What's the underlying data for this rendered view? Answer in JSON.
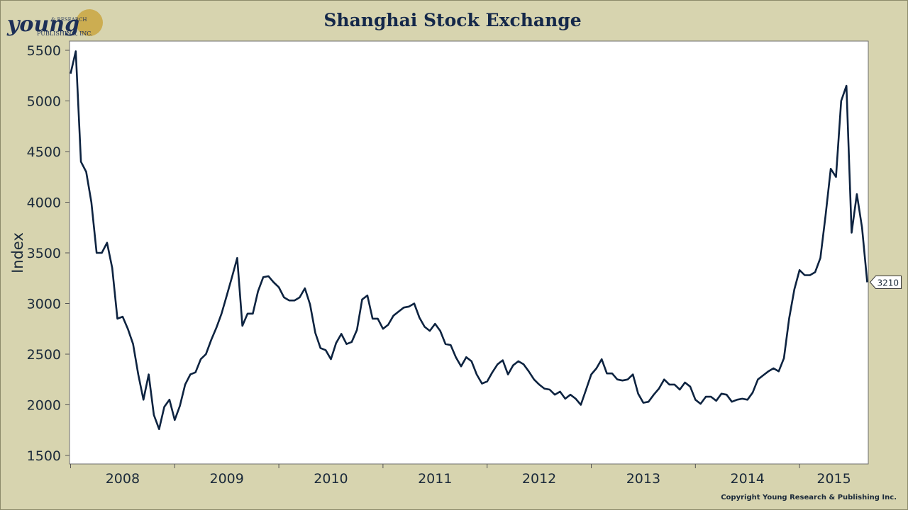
{
  "chart_data": {
    "type": "line",
    "title": "Shanghai Stock Exchange",
    "ylabel": "Index",
    "logo": {
      "name": "young",
      "tagline1": "& RESEARCH",
      "tagline2": "PUBLISHING, INC."
    },
    "footer": "Copyright Young Research & Publishing Inc.",
    "xlim": [
      2007.99,
      2015.66
    ],
    "ylim": [
      1416,
      5591
    ],
    "yticks": [
      1500,
      2000,
      2500,
      3000,
      3500,
      4000,
      4500,
      5000,
      5500
    ],
    "xticks": [
      {
        "value": 2008,
        "label": "2008"
      },
      {
        "value": 2009,
        "label": "2009"
      },
      {
        "value": 2010,
        "label": "2010"
      },
      {
        "value": 2011,
        "label": "2011"
      },
      {
        "value": 2012,
        "label": "2012"
      },
      {
        "value": 2013,
        "label": "2013"
      },
      {
        "value": 2014,
        "label": "2014"
      },
      {
        "value": 2015,
        "label": "2015"
      }
    ],
    "x": [
      2008,
      2008.05,
      2008.1,
      2008.15,
      2008.2,
      2008.25,
      2008.3,
      2008.35,
      2008.4,
      2008.45,
      2008.5,
      2008.55,
      2008.6,
      2008.65,
      2008.7,
      2008.75,
      2008.8,
      2008.85,
      2008.9,
      2008.95,
      2009,
      2009.05,
      2009.1,
      2009.15,
      2009.2,
      2009.25,
      2009.3,
      2009.35,
      2009.4,
      2009.45,
      2009.5,
      2009.55,
      2009.6,
      2009.65,
      2009.7,
      2009.75,
      2009.8,
      2009.85,
      2009.9,
      2009.95,
      2010,
      2010.05,
      2010.1,
      2010.15,
      2010.2,
      2010.25,
      2010.3,
      2010.35,
      2010.4,
      2010.45,
      2010.5,
      2010.55,
      2010.6,
      2010.65,
      2010.7,
      2010.75,
      2010.8,
      2010.85,
      2010.9,
      2010.95,
      2011,
      2011.05,
      2011.1,
      2011.15,
      2011.2,
      2011.25,
      2011.3,
      2011.35,
      2011.4,
      2011.45,
      2011.5,
      2011.55,
      2011.6,
      2011.65,
      2011.7,
      2011.75,
      2011.8,
      2011.85,
      2011.9,
      2011.95,
      2012,
      2012.05,
      2012.1,
      2012.15,
      2012.2,
      2012.25,
      2012.3,
      2012.35,
      2012.4,
      2012.45,
      2012.5,
      2012.55,
      2012.6,
      2012.65,
      2012.7,
      2012.75,
      2012.8,
      2012.85,
      2012.9,
      2012.95,
      2013,
      2013.05,
      2013.1,
      2013.15,
      2013.2,
      2013.25,
      2013.3,
      2013.35,
      2013.4,
      2013.45,
      2013.5,
      2013.55,
      2013.6,
      2013.65,
      2013.7,
      2013.75,
      2013.8,
      2013.85,
      2013.9,
      2013.95,
      2014,
      2014.05,
      2014.1,
      2014.15,
      2014.2,
      2014.25,
      2014.3,
      2014.35,
      2014.4,
      2014.45,
      2014.5,
      2014.55,
      2014.6,
      2014.65,
      2014.7,
      2014.75,
      2014.8,
      2014.85,
      2014.9,
      2014.95,
      2015,
      2015.05,
      2015.1,
      2015.15,
      2015.2,
      2015.25,
      2015.3,
      2015.35,
      2015.4,
      2015.45,
      2015.5,
      2015.55,
      2015.6,
      2015.65
    ],
    "series": [
      {
        "name": "Shanghai Stock Exchange",
        "color": "#0d2340",
        "values": [
          5270,
          5490,
          4400,
          4300,
          4000,
          3500,
          3500,
          3600,
          3350,
          2850,
          2870,
          2750,
          2600,
          2300,
          2050,
          2300,
          1900,
          1760,
          1980,
          2050,
          1850,
          1990,
          2200,
          2300,
          2320,
          2450,
          2500,
          2640,
          2760,
          2900,
          3080,
          3260,
          3450,
          2780,
          2900,
          2900,
          3120,
          3260,
          3270,
          3210,
          3160,
          3060,
          3030,
          3030,
          3060,
          3150,
          2990,
          2710,
          2560,
          2540,
          2450,
          2610,
          2700,
          2600,
          2620,
          2740,
          3040,
          3080,
          2850,
          2850,
          2750,
          2790,
          2880,
          2920,
          2960,
          2970,
          3000,
          2860,
          2770,
          2730,
          2800,
          2730,
          2600,
          2590,
          2470,
          2380,
          2470,
          2430,
          2300,
          2210,
          2230,
          2320,
          2400,
          2440,
          2300,
          2390,
          2430,
          2400,
          2330,
          2250,
          2200,
          2160,
          2150,
          2100,
          2130,
          2060,
          2100,
          2060,
          2000,
          2150,
          2300,
          2360,
          2450,
          2310,
          2310,
          2250,
          2240,
          2250,
          2300,
          2110,
          2020,
          2030,
          2100,
          2160,
          2250,
          2200,
          2200,
          2150,
          2220,
          2180,
          2050,
          2010,
          2080,
          2080,
          2040,
          2110,
          2100,
          2030,
          2050,
          2060,
          2050,
          2120,
          2250,
          2290,
          2330,
          2360,
          2330,
          2460,
          2850,
          3140,
          3330,
          3280,
          3280,
          3310,
          3450,
          3870,
          4330,
          4250,
          5000,
          5150,
          3700,
          4080,
          3750,
          3210
        ]
      }
    ]
  }
}
